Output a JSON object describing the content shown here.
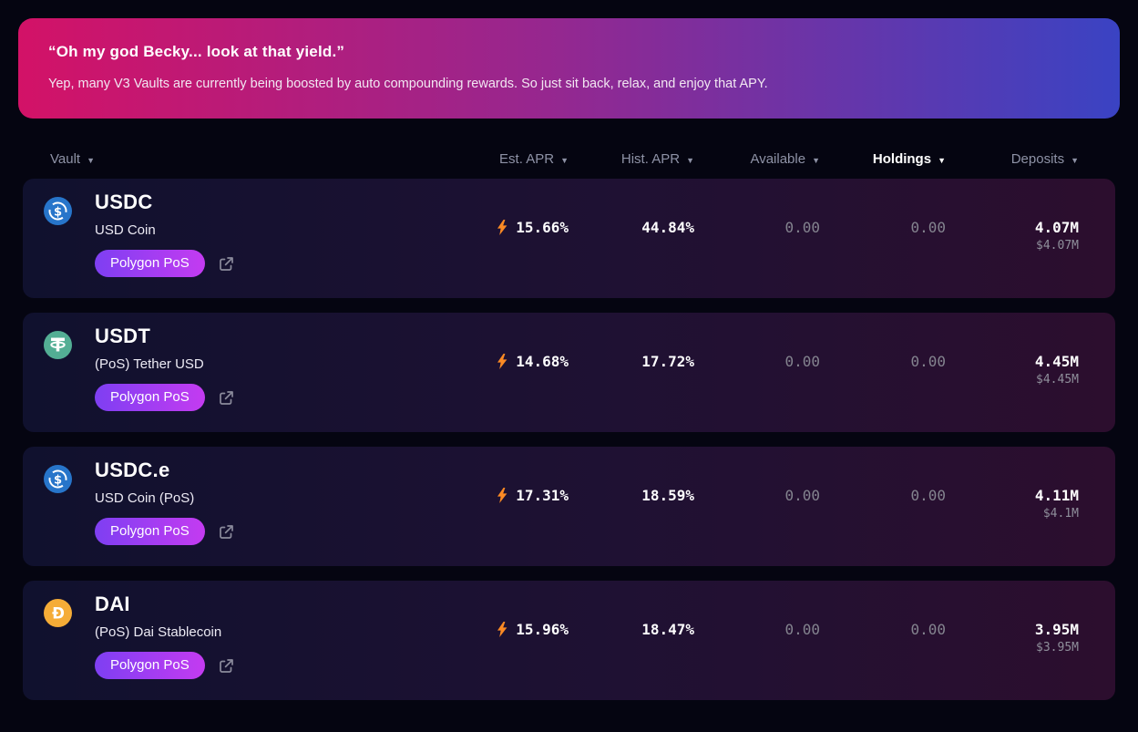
{
  "banner": {
    "title": "“Oh my god Becky... look at that yield.”",
    "subtitle": "Yep, many V3 Vaults are currently being boosted by auto compounding rewards. So just sit back, relax, and enjoy that APY.",
    "gradient_from": "#d31267",
    "gradient_to": "#3a43c3"
  },
  "table": {
    "sort_icon": "▼",
    "columns": [
      {
        "label": "Vault",
        "active": false
      },
      {
        "label": "Est. APR",
        "active": false
      },
      {
        "label": "Hist. APR",
        "active": false
      },
      {
        "label": "Available",
        "active": false
      },
      {
        "label": "Holdings",
        "active": true
      },
      {
        "label": "Deposits",
        "active": false
      }
    ],
    "rows": [
      {
        "symbol": "USDC",
        "name": "USD Coin",
        "chain": "Polygon PoS",
        "icon": "usdc",
        "boost_icon": "lightning-bolt",
        "est_apr": "15.66%",
        "hist_apr": "44.84%",
        "available": "0.00",
        "holdings": "0.00",
        "deposits": "4.07M",
        "deposits_usd": "$4.07M"
      },
      {
        "symbol": "USDT",
        "name": "(PoS) Tether USD",
        "chain": "Polygon PoS",
        "icon": "usdt",
        "boost_icon": "lightning-bolt",
        "est_apr": "14.68%",
        "hist_apr": "17.72%",
        "available": "0.00",
        "holdings": "0.00",
        "deposits": "4.45M",
        "deposits_usd": "$4.45M"
      },
      {
        "symbol": "USDC.e",
        "name": "USD Coin (PoS)",
        "chain": "Polygon PoS",
        "icon": "usdc",
        "boost_icon": "lightning-bolt",
        "est_apr": "17.31%",
        "hist_apr": "18.59%",
        "available": "0.00",
        "holdings": "0.00",
        "deposits": "4.11M",
        "deposits_usd": "$4.1M"
      },
      {
        "symbol": "DAI",
        "name": "(PoS) Dai Stablecoin",
        "chain": "Polygon PoS",
        "icon": "dai",
        "boost_icon": "lightning-bolt",
        "est_apr": "15.96%",
        "hist_apr": "18.47%",
        "available": "0.00",
        "holdings": "0.00",
        "deposits": "3.95M",
        "deposits_usd": "$3.95M"
      }
    ]
  },
  "colors": {
    "page_bg": "#050511",
    "row_bg_left": "#10112e",
    "row_bg_right": "#2c0e2e",
    "badge_gradient_from": "#7e3ff2",
    "badge_gradient_to": "#c43bf1",
    "boost_orange": "#fb8a24",
    "usdc_blue": "#2775ca",
    "usdt_teal": "#53ae94",
    "dai_yellow": "#f5ac37",
    "muted_text": "#84848f"
  }
}
